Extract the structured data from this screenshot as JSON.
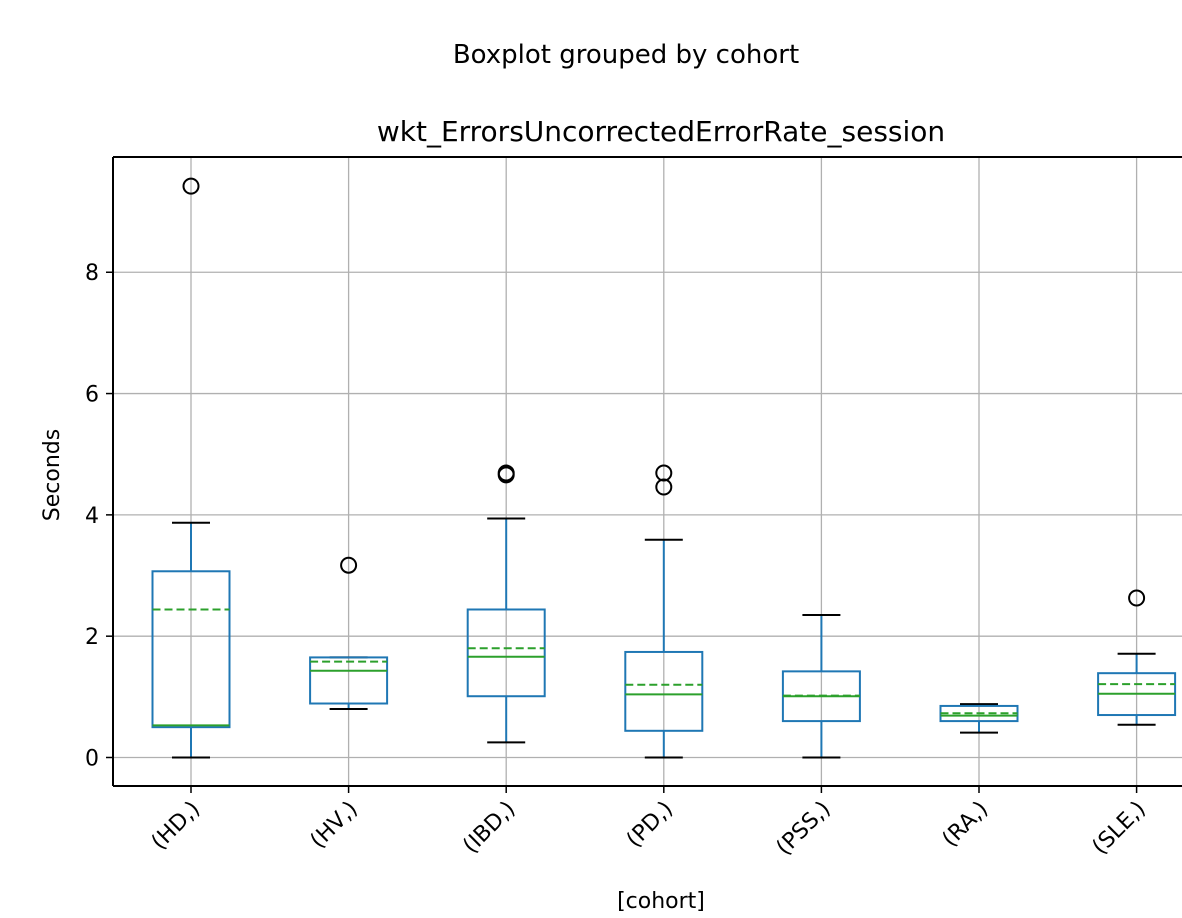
{
  "suptitle": "Boxplot grouped by cohort",
  "chart_data": {
    "type": "boxplot",
    "title": "wkt_ErrorsUncorrectedErrorRate_session",
    "xlabel": "[cohort]",
    "ylabel": "Seconds",
    "ylim": [
      -0.47,
      9.9
    ],
    "yticks": [
      0,
      2,
      4,
      6,
      8
    ],
    "grid": true,
    "categories": [
      "(HD,)",
      "(HV,)",
      "(IBD,)",
      "(PD,)",
      "(PSS,)",
      "(RA,)",
      "(SLE,)"
    ],
    "boxes": [
      {
        "whisker_low": 0.0,
        "q1": 0.5,
        "median": 0.53,
        "mean": 2.44,
        "q3": 3.07,
        "whisker_high": 3.87,
        "outliers": [
          9.42
        ]
      },
      {
        "whisker_low": 0.8,
        "q1": 0.89,
        "median": 1.43,
        "mean": 1.58,
        "q3": 1.65,
        "whisker_high": 1.65,
        "outliers": [
          3.17
        ]
      },
      {
        "whisker_low": 0.25,
        "q1": 1.01,
        "median": 1.66,
        "mean": 1.8,
        "q3": 2.44,
        "whisker_high": 3.94,
        "outliers": [
          4.66,
          4.69
        ]
      },
      {
        "whisker_low": 0.0,
        "q1": 0.44,
        "median": 1.04,
        "mean": 1.2,
        "q3": 1.74,
        "whisker_high": 3.59,
        "outliers": [
          4.46,
          4.69
        ]
      },
      {
        "whisker_low": 0.0,
        "q1": 0.6,
        "median": 1.01,
        "mean": 1.02,
        "q3": 1.42,
        "whisker_high": 2.35,
        "outliers": []
      },
      {
        "whisker_low": 0.41,
        "q1": 0.6,
        "median": 0.69,
        "mean": 0.73,
        "q3": 0.85,
        "whisker_high": 0.88,
        "outliers": []
      },
      {
        "whisker_low": 0.54,
        "q1": 0.7,
        "median": 1.05,
        "mean": 1.21,
        "q3": 1.39,
        "whisker_high": 1.71,
        "outliers": [
          2.63
        ]
      }
    ],
    "colors": {
      "box": "#1f77b4",
      "median": "#2ca02c",
      "mean": "#2ca02c",
      "outlier": "#000000",
      "grid": "#b0b0b0"
    }
  }
}
